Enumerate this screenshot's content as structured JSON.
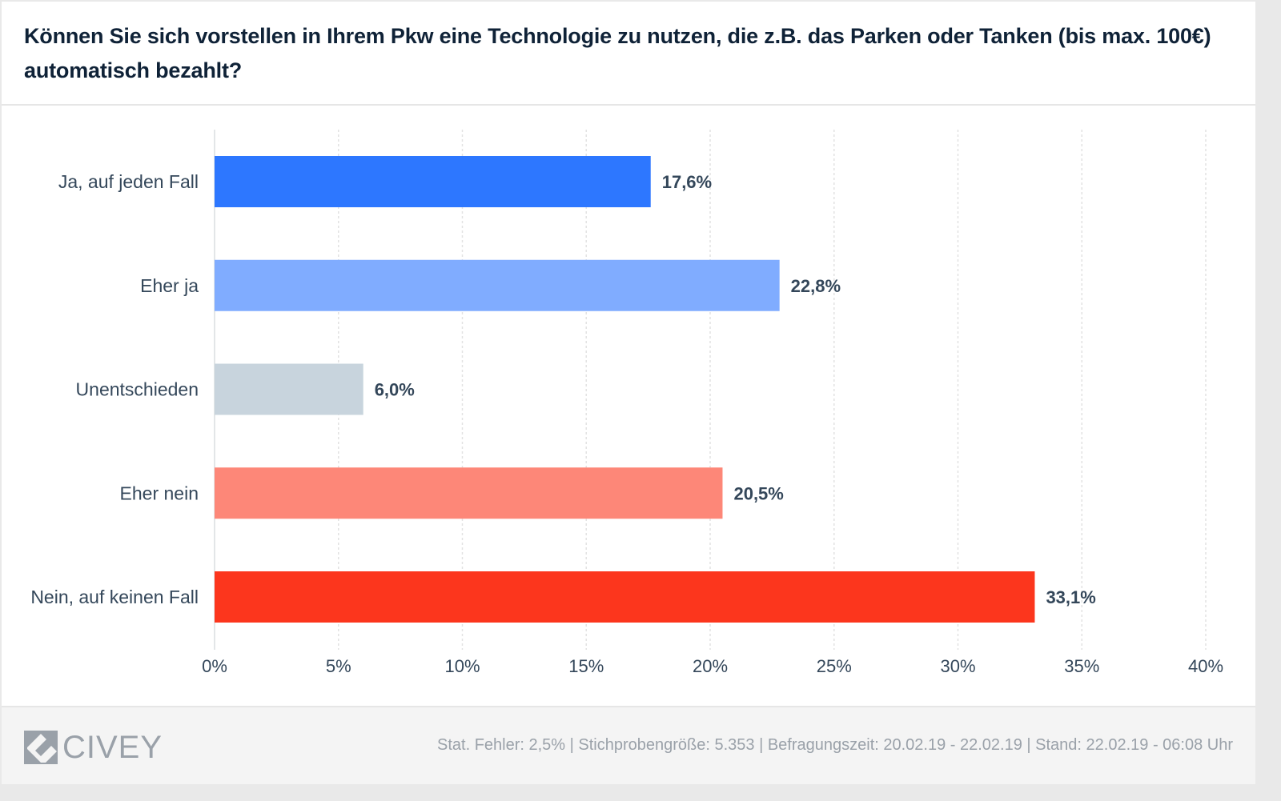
{
  "header": {
    "title": "Können Sie sich vorstellen in Ihrem Pkw eine Technologie zu nutzen, die z.B. das Parken oder Tanken (bis max. 100€) automatisch bezahlt?"
  },
  "footer": {
    "logo_text": "CIVEY",
    "logo_icon": "civey-logo-icon",
    "meta": "Stat. Fehler: 2,5% | Stichprobengröße: 5.353 | Befragungszeit: 20.02.19 - 22.02.19 | Stand: 22.02.19 - 06:08 Uhr"
  },
  "chart_data": {
    "type": "bar",
    "orientation": "horizontal",
    "title": "Können Sie sich vorstellen in Ihrem Pkw eine Technologie zu nutzen, die z.B. das Parken oder Tanken (bis max. 100€) automatisch bezahlt?",
    "xlabel": "",
    "ylabel": "",
    "categories": [
      "Ja, auf jeden Fall",
      "Eher ja",
      "Unentschieden",
      "Eher nein",
      "Nein, auf keinen Fall"
    ],
    "values": [
      17.6,
      22.8,
      6.0,
      20.5,
      33.1
    ],
    "value_labels": [
      "17,6%",
      "22,8%",
      "6,0%",
      "20,5%",
      "33,1%"
    ],
    "colors": [
      "#2d77ff",
      "#80acff",
      "#c8d4dd",
      "#fd8778",
      "#fc361d"
    ],
    "xlim": [
      0,
      40
    ],
    "xticks": [
      0,
      5,
      10,
      15,
      20,
      25,
      30,
      35,
      40
    ],
    "xtick_labels": [
      "0%",
      "5%",
      "10%",
      "15%",
      "20%",
      "25%",
      "30%",
      "35%",
      "40%"
    ],
    "grid": true,
    "grid_style": "dotted-vertical",
    "legend": "none"
  }
}
